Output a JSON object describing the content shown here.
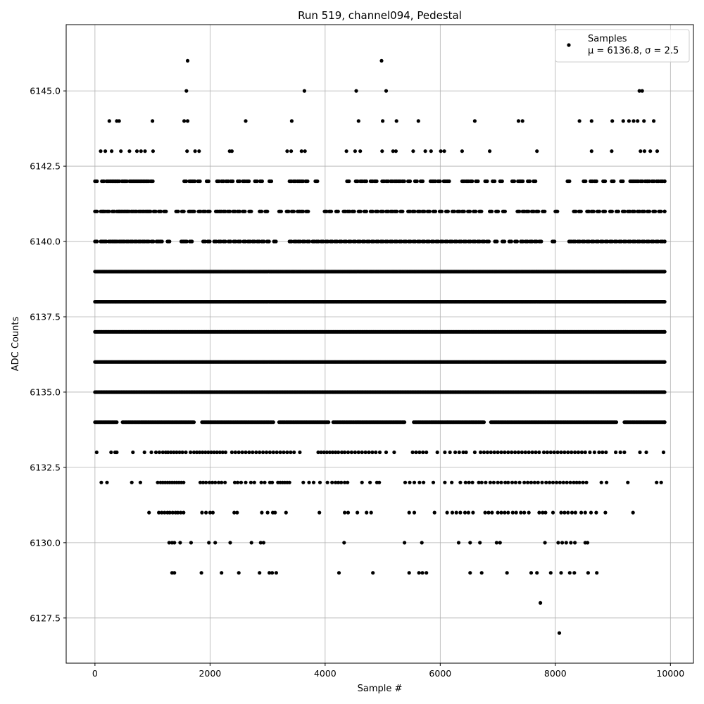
{
  "chart_data": {
    "type": "scatter",
    "title": "Run 519, channel094, Pedestal",
    "xlabel": "Sample #",
    "ylabel": "ADC Counts",
    "xlim": [
      -500,
      10400
    ],
    "ylim": [
      6126,
      6147.2
    ],
    "x_ticks": [
      0,
      2000,
      4000,
      6000,
      8000,
      10000
    ],
    "x_tick_labels": [
      "0",
      "2000",
      "4000",
      "6000",
      "8000",
      "10000"
    ],
    "y_ticks": [
      6127.5,
      6130.0,
      6132.5,
      6135.0,
      6137.5,
      6140.0,
      6142.5,
      6145.0
    ],
    "y_tick_labels": [
      "6127.5",
      "6130.0",
      "6132.5",
      "6135.0",
      "6137.5",
      "6140.0",
      "6142.5",
      "6145.0"
    ],
    "grid": true,
    "legend_position": "top-right",
    "marker_color": "#000000",
    "series": [
      {
        "name": "Samples",
        "stats_label": "μ = 6136.8, σ = 2.5",
        "mean": 6136.8,
        "sigma": 2.5,
        "x_range": [
          0,
          9900
        ],
        "points": [
          [
            1610,
            6146
          ],
          [
            4980,
            6146
          ],
          [
            1590,
            6145
          ],
          [
            3640,
            6145
          ],
          [
            4540,
            6145
          ],
          [
            5060,
            6145
          ],
          [
            9460,
            6145
          ],
          [
            9510,
            6145
          ],
          [
            250,
            6144
          ],
          [
            380,
            6144
          ],
          [
            420,
            6144
          ],
          [
            1000,
            6144
          ],
          [
            1550,
            6144
          ],
          [
            1610,
            6144
          ],
          [
            2620,
            6144
          ],
          [
            3420,
            6144
          ],
          [
            4580,
            6144
          ],
          [
            5000,
            6144
          ],
          [
            5240,
            6144
          ],
          [
            5620,
            6144
          ],
          [
            6600,
            6144
          ],
          [
            7360,
            6144
          ],
          [
            7430,
            6144
          ],
          [
            8420,
            6144
          ],
          [
            8630,
            6144
          ],
          [
            8990,
            6144
          ],
          [
            9180,
            6144
          ],
          [
            9280,
            6144
          ],
          [
            9360,
            6144
          ],
          [
            9430,
            6144
          ],
          [
            9540,
            6144
          ],
          [
            9710,
            6144
          ],
          [
            100,
            6143
          ],
          [
            180,
            6143
          ],
          [
            290,
            6143
          ],
          [
            450,
            6143
          ],
          [
            600,
            6143
          ],
          [
            730,
            6143
          ],
          [
            800,
            6143
          ],
          [
            870,
            6143
          ],
          [
            1010,
            6143
          ],
          [
            1600,
            6143
          ],
          [
            1740,
            6143
          ],
          [
            1810,
            6143
          ],
          [
            2340,
            6143
          ],
          [
            2380,
            6143
          ],
          [
            3340,
            6143
          ],
          [
            3410,
            6143
          ],
          [
            3590,
            6143
          ],
          [
            3650,
            6143
          ],
          [
            4370,
            6143
          ],
          [
            4520,
            6143
          ],
          [
            4610,
            6143
          ],
          [
            4990,
            6143
          ],
          [
            5180,
            6143
          ],
          [
            5230,
            6143
          ],
          [
            5530,
            6143
          ],
          [
            5740,
            6143
          ],
          [
            5840,
            6143
          ],
          [
            6010,
            6143
          ],
          [
            6070,
            6143
          ],
          [
            6380,
            6143
          ],
          [
            6860,
            6143
          ],
          [
            7680,
            6143
          ],
          [
            8630,
            6143
          ],
          [
            8980,
            6143
          ],
          [
            9480,
            6143
          ],
          [
            9550,
            6143
          ],
          [
            9650,
            6143
          ],
          [
            9770,
            6143
          ]
        ],
        "rare_points": [
          [
            7740,
            6128
          ],
          [
            8070,
            6127
          ]
        ],
        "bands": [
          {
            "value": 6142,
            "xs": [
              0,
              120,
              200,
              260,
              310,
              350,
              390,
              470,
              520,
              600,
              650,
              700,
              750,
              800,
              850,
              900,
              970,
              1550,
              1640,
              1700,
              1790,
              1940,
              2120,
              2200,
              2280,
              2360,
              2480,
              2570,
              2640,
              2780,
              2870,
              3030,
              3380,
              3450,
              3520,
              3580,
              3660,
              3830,
              4380,
              4530,
              4610,
              4680,
              4790,
              4860,
              4990,
              5060,
              5140,
              5210,
              5270,
              5340,
              5440,
              5560,
              5660,
              5830,
              5880,
              5960,
              6060,
              6120,
              6380,
              6450,
              6520,
              6620,
              6780,
              6910,
              7040,
              7250,
              7350,
              7400,
              7520,
              7620,
              8210,
              8490,
              8610,
              8680,
              8830,
              8980,
              9140,
              9300,
              9350,
              9410,
              9480,
              9560,
              9600,
              9680,
              9760,
              9830,
              9900
            ]
          },
          {
            "value": 6141,
            "xs": [
              0,
              100,
              140,
              210,
              300,
              380,
              420,
              470,
              520,
              560,
              630,
              690,
              760,
              820,
              880,
              930,
              1020,
              1110,
              1200,
              1410,
              1510,
              1630,
              1690,
              1800,
              1880,
              1960,
              2100,
              2160,
              2230,
              2310,
              2400,
              2480,
              2570,
              2680,
              2860,
              2960,
              3200,
              3330,
              3420,
              3520,
              3580,
              3670,
              3990,
              4070,
              4190,
              4320,
              4390,
              4470,
              4580,
              4680,
              4790,
              4880,
              4970,
              5060,
              5140,
              5210,
              5310,
              5440,
              5520,
              5610,
              5690,
              5780,
              5880,
              5990,
              6100,
              6210,
              6300,
              6380,
              6480,
              6580,
              6680,
              6860,
              6970,
              7090,
              7340,
              7430,
              7500,
              7590,
              7670,
              7780,
              8000,
              8320,
              8410,
              8550,
              8630,
              8730,
              8830,
              8950,
              9060,
              9170,
              9260,
              9340,
              9430,
              9510,
              9600,
              9700,
              9800,
              9900
            ]
          },
          {
            "value": 6140,
            "xs": [
              0,
              100,
              160,
              240,
              300,
              350,
              420,
              480,
              550,
              620,
              690,
              760,
              830,
              900,
              980,
              1070,
              1130,
              1260,
              1500,
              1560,
              1650,
              1880,
              1960,
              2070,
              2150,
              2230,
              2320,
              2410,
              2490,
              2580,
              2660,
              2740,
              2820,
              2900,
              2990,
              3110,
              3380,
              3460,
              3530,
              3610,
              3690,
              3780,
              3850,
              3930,
              4010,
              4090,
              4170,
              4250,
              4330,
              4410,
              4490,
              4570,
              4650,
              4730,
              4810,
              4890,
              4970,
              5050,
              5130,
              5210,
              5290,
              5370,
              5450,
              5530,
              5610,
              5690,
              5770,
              5850,
              5930,
              6010,
              6090,
              6170,
              6250,
              6330,
              6410,
              6490,
              6570,
              6650,
              6730,
              6810,
              6950,
              7080,
              7200,
              7300,
              7400,
              7480,
              7560,
              7640,
              7720,
              7950,
              8240,
              8310,
              8390,
              8470,
              8550,
              8630,
              8710,
              8790,
              8870,
              8950,
              9030,
              9110,
              9190,
              9270,
              9350,
              9430,
              9510,
              9590,
              9670,
              9750,
              9830,
              9900
            ]
          }
        ],
        "dense_bands": [
          6139,
          6138,
          6137,
          6136,
          6135,
          6134
        ],
        "dense_band_ranges": [
          [
            0,
            9900
          ],
          [
            0,
            9900
          ],
          [
            0,
            9900
          ],
          [
            0,
            9900
          ],
          [
            0,
            9900
          ],
          [
            0,
            9900
          ]
        ],
        "sparse_bands": [
          {
            "value": 6133,
            "xs": [
              30,
              280,
              350,
              380,
              660,
              860,
              980,
              1060,
              1120,
              1180,
              1230,
              1270,
              1320,
              1370,
              1420,
              1470,
              1520,
              1580,
              1660,
              1720,
              1770,
              1820,
              1870,
              1920,
              1970,
              2020,
              2070,
              2120,
              2170,
              2220,
              2270,
              2380,
              2440,
              2500,
              2560,
              2620,
              2680,
              2740,
              2800,
              2860,
              2920,
              2980,
              3040,
              3100,
              3160,
              3220,
              3280,
              3340,
              3400,
              3460,
              3560,
              3880,
              3930,
              3980,
              4030,
              4080,
              4130,
              4180,
              4230,
              4290,
              4340,
              4400,
              4460,
              4520,
              4580,
              4640,
              4700,
              4760,
              4820,
              4880,
              4950,
              5060,
              5200,
              5520,
              5580,
              5640,
              5700,
              5760,
              5950,
              6080,
              6170,
              6260,
              6330,
              6400,
              6450,
              6600,
              6700,
              6760,
              6820,
              6880,
              6940,
              7000,
              7060,
              7120,
              7180,
              7240,
              7300,
              7360,
              7420,
              7480,
              7540,
              7600,
              7660,
              7720,
              7800,
              7860,
              7920,
              7980,
              8040,
              8100,
              8160,
              8220,
              8280,
              8340,
              8400,
              8460,
              8520,
              8600,
              8680,
              8760,
              8820,
              8880,
              9050,
              9130,
              9200,
              9470,
              9580,
              9880
            ]
          },
          {
            "value": 6132,
            "xs": [
              110,
              210,
              640,
              790,
              1090,
              1140,
              1180,
              1220,
              1260,
              1300,
              1340,
              1380,
              1420,
              1460,
              1500,
              1540,
              1830,
              1880,
              1930,
              1990,
              2040,
              2090,
              2150,
              2200,
              2260,
              2430,
              2480,
              2540,
              2620,
              2710,
              2770,
              2890,
              2950,
              3040,
              3080,
              3180,
              3220,
              3260,
              3300,
              3340,
              3380,
              3620,
              3720,
              3800,
              3910,
              4040,
              4120,
              4180,
              4230,
              4280,
              4340,
              4390,
              4640,
              4780,
              4900,
              4940,
              5390,
              5470,
              5550,
              5640,
              5710,
              5880,
              6080,
              6200,
              6350,
              6440,
              6500,
              6560,
              6670,
              6720,
              6790,
              6870,
              6930,
              7000,
              7060,
              7130,
              7180,
              7250,
              7310,
              7380,
              7460,
              7520,
              7580,
              7640,
              7700,
              7770,
              7840,
              7900,
              7960,
              8020,
              8080,
              8140,
              8200,
              8260,
              8320,
              8370,
              8420,
              8480,
              8540,
              8800,
              8890,
              9260,
              9760,
              9840
            ]
          },
          {
            "value": 6131,
            "xs": [
              940,
              1110,
              1160,
              1210,
              1260,
              1300,
              1350,
              1400,
              1440,
              1490,
              1540,
              1860,
              1930,
              2000,
              2050,
              2420,
              2470,
              2900,
              3000,
              3090,
              3130,
              3320,
              3900,
              4340,
              4400,
              4560,
              4720,
              4800,
              5460,
              5550,
              5900,
              6120,
              6210,
              6280,
              6350,
              6430,
              6490,
              6570,
              6780,
              6840,
              6900,
              7000,
              7060,
              7120,
              7180,
              7260,
              7320,
              7400,
              7460,
              7540,
              7720,
              7780,
              7830,
              7960,
              8100,
              8160,
              8220,
              8290,
              8350,
              8450,
              8520,
              8620,
              8710,
              8870,
              9350
            ]
          },
          {
            "value": 6130,
            "xs": [
              1290,
              1340,
              1380,
              1480,
              1670,
              1980,
              2090,
              2350,
              2720,
              2880,
              2930,
              4330,
              5380,
              5680,
              6320,
              6520,
              6690,
              6980,
              7040,
              7820,
              8050,
              8120,
              8190,
              8270,
              8340,
              8520,
              8560
            ]
          },
          {
            "value": 6129,
            "xs": [
              1340,
              1380,
              1850,
              2200,
              2500,
              2860,
              3030,
              3080,
              3150,
              4240,
              4830,
              5460,
              5630,
              5690,
              5760,
              6520,
              6720,
              7160,
              7580,
              7680,
              7920,
              8100,
              8250,
              8330,
              8570,
              8720
            ]
          }
        ]
      }
    ]
  }
}
